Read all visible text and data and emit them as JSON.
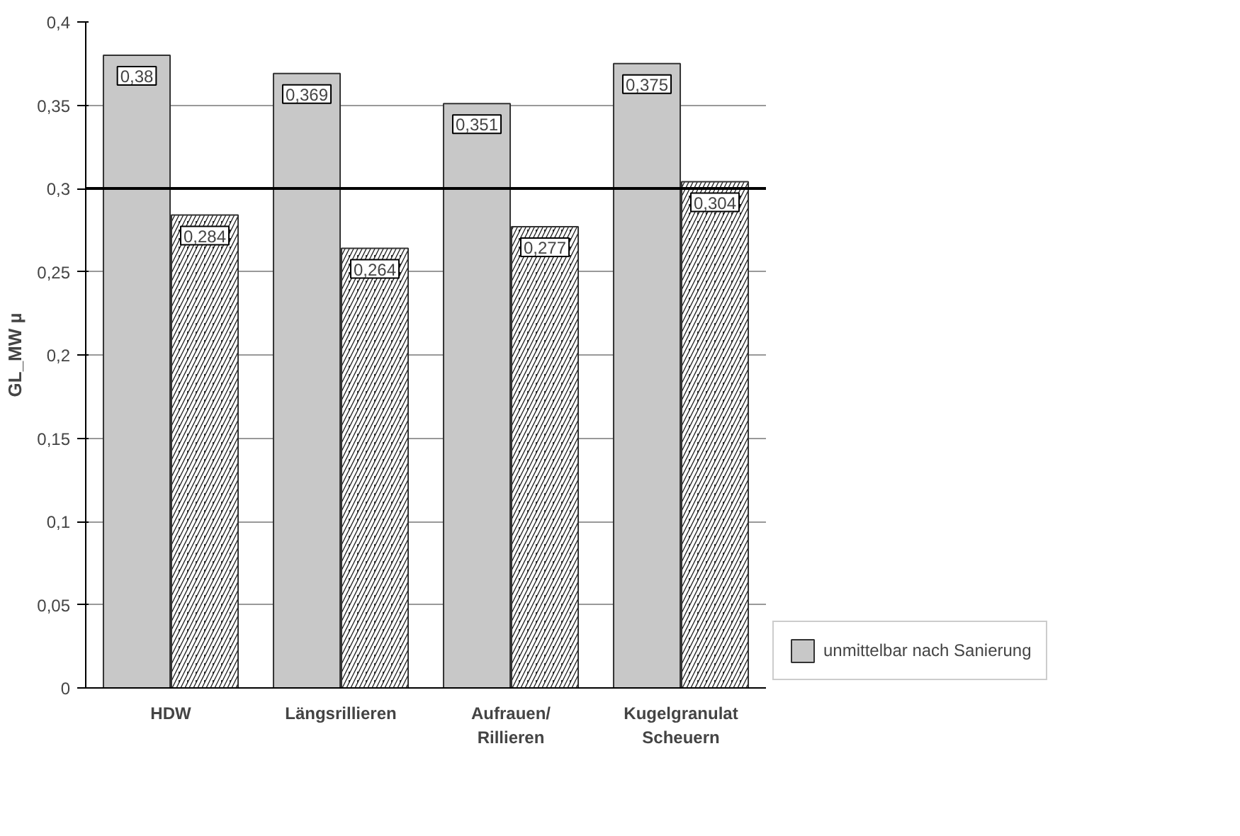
{
  "chart_data": {
    "type": "bar",
    "ylabel": "GL_MW µ",
    "categories": [
      "HDW",
      "Längsrillieren",
      "Aufrauen/\nRillieren",
      "Kugelgranulat\nScheuern"
    ],
    "series": [
      {
        "name": "unmittelbar nach Sanierung",
        "color": "#c8c8c8",
        "values": [
          0.38,
          0.369,
          0.351,
          0.375
        ],
        "value_labels": [
          "0,38",
          "0,369",
          "0,351",
          "0,375"
        ]
      },
      {
        "color": "#222222",
        "values": [
          0.284,
          0.264,
          0.277,
          0.304
        ],
        "value_labels": [
          "0,284",
          "0,264",
          "0,277",
          "0,304"
        ]
      }
    ],
    "ylim": [
      0,
      0.4
    ],
    "yticks": [
      0,
      {
        "value": 0.05,
        "label": "0,05"
      },
      {
        "value": 0.1,
        "label": "0,1"
      },
      {
        "value": 0.15,
        "label": "0,15"
      },
      {
        "value": 0.2,
        "label": "0,2"
      },
      {
        "value": 0.25,
        "label": "0,25"
      },
      {
        "value": 0.3,
        "label": "0,3"
      },
      {
        "value": 0.35,
        "label": "0,35"
      },
      {
        "value": 0.4,
        "label": "0,4"
      }
    ],
    "ref_lines": [
      {
        "axis": "y",
        "value": 0.3,
        "color": "#000000"
      }
    ],
    "grid": "y",
    "legend": "right"
  }
}
